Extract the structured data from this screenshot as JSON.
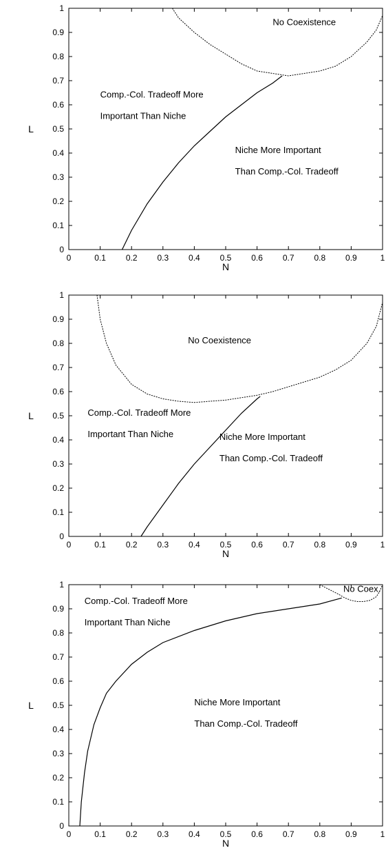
{
  "chart_data": [
    {
      "type": "line",
      "xlabel": "N",
      "ylabel": "L",
      "xlim": [
        0,
        1
      ],
      "ylim": [
        0,
        1
      ],
      "xticks": [
        "0",
        "0.1",
        "0.2",
        "0.3",
        "0.4",
        "0.5",
        "0.6",
        "0.7",
        "0.8",
        "0.9",
        "1"
      ],
      "yticks": [
        "0",
        "0.1",
        "0.2",
        "0.3",
        "0.4",
        "0.5",
        "0.6",
        "0.7",
        "0.8",
        "0.9",
        "1"
      ],
      "grid": false,
      "regions": [
        {
          "lines": [
            "No Coexistence"
          ],
          "at": [
            0.65,
            0.93
          ]
        },
        {
          "lines": [
            "Comp.-Col. Tradeoff More",
            "Important Than Niche"
          ],
          "at": [
            0.1,
            0.63
          ]
        },
        {
          "lines": [
            "Niche More Important",
            "Than Comp.-Col. Tradeoff"
          ],
          "at": [
            0.53,
            0.4
          ]
        }
      ],
      "series": [
        {
          "style": "solid",
          "x": [
            0.17,
            0.2,
            0.25,
            0.3,
            0.35,
            0.4,
            0.45,
            0.5,
            0.55,
            0.6,
            0.65,
            0.68
          ],
          "y": [
            0.0,
            0.08,
            0.19,
            0.28,
            0.36,
            0.43,
            0.49,
            0.55,
            0.6,
            0.65,
            0.69,
            0.72
          ]
        },
        {
          "style": "dashed",
          "x": [
            0.33,
            0.35,
            0.4,
            0.45,
            0.5,
            0.55,
            0.6,
            0.65,
            0.7,
            0.75,
            0.8,
            0.85,
            0.9,
            0.95,
            0.98,
            1.0
          ],
          "y": [
            1.0,
            0.96,
            0.9,
            0.85,
            0.81,
            0.77,
            0.74,
            0.73,
            0.72,
            0.73,
            0.74,
            0.76,
            0.8,
            0.86,
            0.91,
            0.97
          ]
        }
      ]
    },
    {
      "type": "line",
      "xlabel": "N",
      "ylabel": "L",
      "xlim": [
        0,
        1
      ],
      "ylim": [
        0,
        1
      ],
      "xticks": [
        "0",
        "0.1",
        "0.2",
        "0.3",
        "0.4",
        "0.5",
        "0.6",
        "0.7",
        "0.8",
        "0.9",
        "1"
      ],
      "yticks": [
        "0",
        "0.1",
        "0.2",
        "0.3",
        "0.4",
        "0.5",
        "0.6",
        "0.7",
        "0.8",
        "0.9",
        "1"
      ],
      "grid": false,
      "regions": [
        {
          "lines": [
            "No Coexistence"
          ],
          "at": [
            0.38,
            0.8
          ]
        },
        {
          "lines": [
            "Comp.-Col. Tradeoff More",
            "Important Than Niche"
          ],
          "at": [
            0.06,
            0.5
          ]
        },
        {
          "lines": [
            "Niche More Important",
            "Than Comp.-Col. Tradeoff"
          ],
          "at": [
            0.48,
            0.4
          ]
        }
      ],
      "series": [
        {
          "style": "solid",
          "x": [
            0.23,
            0.25,
            0.3,
            0.35,
            0.4,
            0.45,
            0.5,
            0.55,
            0.6,
            0.61
          ],
          "y": [
            0.0,
            0.04,
            0.13,
            0.22,
            0.3,
            0.37,
            0.44,
            0.51,
            0.57,
            0.58
          ]
        },
        {
          "style": "dashed",
          "x": [
            0.09,
            0.1,
            0.12,
            0.15,
            0.2,
            0.25,
            0.3,
            0.35,
            0.4,
            0.45,
            0.5,
            0.55,
            0.6,
            0.65,
            0.7,
            0.75,
            0.8,
            0.85,
            0.9,
            0.95,
            0.98,
            1.0
          ],
          "y": [
            1.0,
            0.9,
            0.8,
            0.71,
            0.63,
            0.59,
            0.57,
            0.56,
            0.555,
            0.56,
            0.565,
            0.575,
            0.585,
            0.6,
            0.62,
            0.64,
            0.66,
            0.69,
            0.73,
            0.8,
            0.87,
            0.97
          ]
        }
      ]
    },
    {
      "type": "line",
      "xlabel": "N",
      "ylabel": "L",
      "xlim": [
        0,
        1
      ],
      "ylim": [
        0,
        1
      ],
      "xticks": [
        "0",
        "0.1",
        "0.2",
        "0.3",
        "0.4",
        "0.5",
        "0.6",
        "0.7",
        "0.8",
        "0.9",
        "1"
      ],
      "yticks": [
        "0",
        "0.1",
        "0.2",
        "0.3",
        "0.4",
        "0.5",
        "0.6",
        "0.7",
        "0.8",
        "0.9",
        "1"
      ],
      "grid": false,
      "regions": [
        {
          "lines": [
            "No Coex."
          ],
          "at": [
            0.875,
            0.97
          ]
        },
        {
          "lines": [
            "Comp.-Col. Tradeoff More",
            "Important Than Niche"
          ],
          "at": [
            0.05,
            0.92
          ]
        },
        {
          "lines": [
            "Niche More Important",
            "Than Comp.-Col. Tradeoff"
          ],
          "at": [
            0.4,
            0.5
          ]
        }
      ],
      "series": [
        {
          "style": "solid",
          "x": [
            0.035,
            0.04,
            0.05,
            0.06,
            0.08,
            0.1,
            0.12,
            0.15,
            0.2,
            0.25,
            0.3,
            0.4,
            0.5,
            0.6,
            0.7,
            0.8,
            0.87
          ],
          "y": [
            0.0,
            0.1,
            0.22,
            0.31,
            0.42,
            0.49,
            0.55,
            0.6,
            0.67,
            0.72,
            0.76,
            0.81,
            0.85,
            0.88,
            0.9,
            0.92,
            0.945
          ]
        },
        {
          "style": "dashed",
          "x": [
            0.8,
            0.83,
            0.86,
            0.88,
            0.9,
            0.92,
            0.94,
            0.96,
            0.98,
            0.99,
            1.0
          ],
          "y": [
            1.0,
            0.98,
            0.96,
            0.945,
            0.935,
            0.93,
            0.93,
            0.935,
            0.95,
            0.97,
            1.0
          ]
        }
      ]
    }
  ]
}
